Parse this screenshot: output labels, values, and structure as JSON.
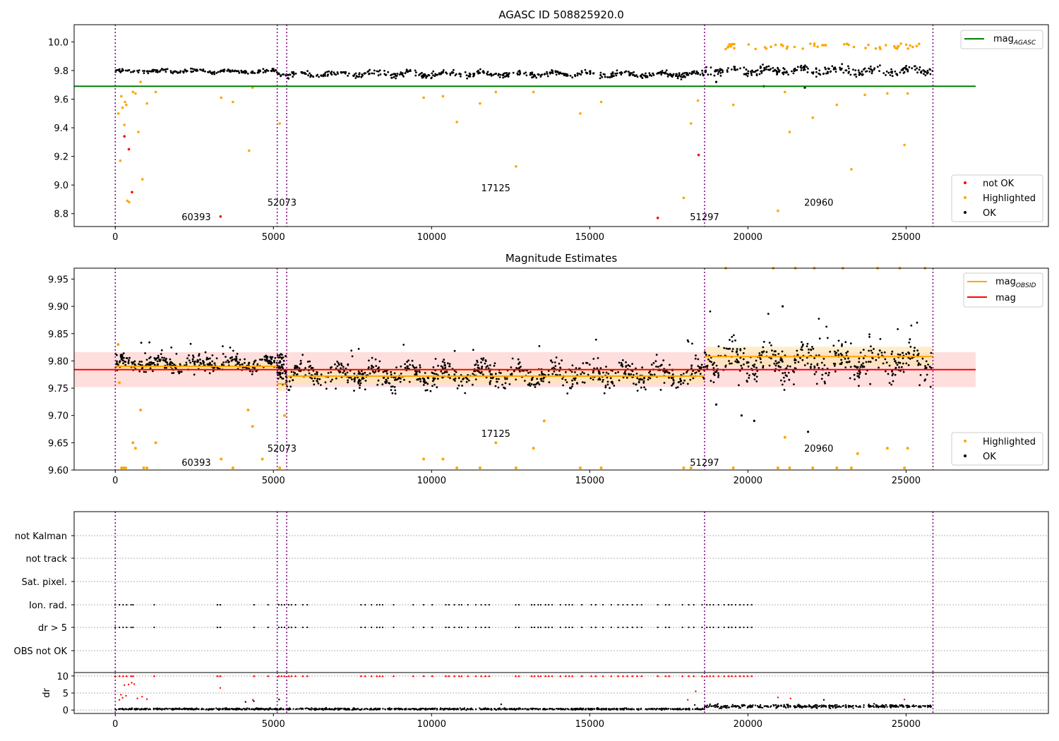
{
  "chart_data": [
    {
      "type": "scatter",
      "title": "AGASC ID 508825920.0",
      "xlim": [
        -1300,
        29500
      ],
      "ylim": [
        8.71,
        10.12
      ],
      "xticks": [
        0,
        5000,
        10000,
        15000,
        20000,
        25000
      ],
      "yticks": [
        8.8,
        9.0,
        9.2,
        9.4,
        9.6,
        9.8,
        10.0
      ],
      "ytick_labels": [
        "8.8",
        "9.0",
        "9.2",
        "9.4",
        "9.6",
        "9.8",
        "10.0"
      ],
      "grid": false,
      "hline": {
        "name": "mag_AGASC",
        "y": 9.69,
        "x_range": [
          -1300,
          27200
        ],
        "color": "#008000"
      },
      "obsid_boundaries": [
        0,
        5120,
        5420,
        18630,
        25850
      ],
      "obsid_labels": [
        {
          "text": "60393",
          "x": 2560,
          "y": 8.78
        },
        {
          "text": "52073",
          "x": 5270,
          "y": 8.88
        },
        {
          "text": "17125",
          "x": 12030,
          "y": 8.98
        },
        {
          "text": "51297",
          "x": 18630,
          "y": 8.78
        },
        {
          "text": "20960",
          "x": 22240,
          "y": 8.88
        }
      ],
      "segments": [
        {
          "x0": 0,
          "x1": 5120,
          "center": 9.795,
          "spread": 0.012
        },
        {
          "x0": 5120,
          "x1": 5420,
          "center": 9.775,
          "spread": 0.012
        },
        {
          "x0": 5420,
          "x1": 18630,
          "center": 9.775,
          "spread": 0.02
        },
        {
          "x0": 18630,
          "x1": 25850,
          "center": 9.8,
          "spread": 0.028
        }
      ],
      "series": [
        {
          "name": "not OK",
          "color": "#ff0000",
          "points": [
            [
              290,
              9.34
            ],
            [
              430,
              9.25
            ],
            [
              530,
              8.95
            ],
            [
              3330,
              8.78
            ],
            [
              17150,
              8.77
            ],
            [
              18440,
              9.21
            ]
          ]
        },
        {
          "name": "Highlighted",
          "color": "#ffa500",
          "points": [
            [
              100,
              9.5
            ],
            [
              160,
              9.17
            ],
            [
              190,
              9.62
            ],
            [
              230,
              9.54
            ],
            [
              290,
              9.42
            ],
            [
              310,
              9.58
            ],
            [
              350,
              9.56
            ],
            [
              380,
              8.89
            ],
            [
              440,
              8.88
            ],
            [
              560,
              9.65
            ],
            [
              640,
              9.64
            ],
            [
              730,
              9.37
            ],
            [
              800,
              9.72
            ],
            [
              860,
              9.04
            ],
            [
              1000,
              9.57
            ],
            [
              1280,
              9.65
            ],
            [
              3350,
              9.61
            ],
            [
              3720,
              9.58
            ],
            [
              4230,
              9.24
            ],
            [
              4340,
              9.68
            ],
            [
              5200,
              9.43
            ],
            [
              9750,
              9.61
            ],
            [
              10360,
              9.62
            ],
            [
              10800,
              9.44
            ],
            [
              11530,
              9.57
            ],
            [
              12030,
              9.65
            ],
            [
              12670,
              9.13
            ],
            [
              13220,
              9.65
            ],
            [
              14700,
              9.5
            ],
            [
              15360,
              9.58
            ],
            [
              17970,
              8.91
            ],
            [
              18200,
              9.43
            ],
            [
              18420,
              9.59
            ],
            [
              19540,
              9.56
            ],
            [
              20950,
              8.82
            ],
            [
              21170,
              9.65
            ],
            [
              21320,
              9.37
            ],
            [
              22050,
              9.47
            ],
            [
              22810,
              9.56
            ],
            [
              23270,
              9.11
            ],
            [
              23700,
              9.63
            ],
            [
              24410,
              9.64
            ],
            [
              24950,
              9.28
            ],
            [
              25050,
              9.64
            ]
          ]
        },
        {
          "name": "OK",
          "color": "#000000",
          "points": [
            [
              19000,
              9.72
            ],
            [
              20500,
              9.69
            ],
            [
              21800,
              9.68
            ]
          ]
        }
      ],
      "legends": [
        {
          "position": "upper right",
          "entries": [
            {
              "label": "mag_AGASC",
              "kind": "line",
              "color": "#008000"
            }
          ]
        },
        {
          "position": "lower right",
          "entries": [
            {
              "label": "not OK",
              "kind": "dot",
              "color": "#ff0000"
            },
            {
              "label": "Highlighted",
              "kind": "dot",
              "color": "#ffa500"
            },
            {
              "label": "OK",
              "kind": "dot",
              "color": "#000000"
            }
          ]
        }
      ]
    },
    {
      "type": "scatter",
      "title": "Magnitude Estimates",
      "xlim": [
        -1300,
        29500
      ],
      "ylim": [
        9.6,
        9.97
      ],
      "xticks": [
        0,
        5000,
        10000,
        15000,
        20000,
        25000
      ],
      "yticks": [
        9.6,
        9.65,
        9.7,
        9.75,
        9.8,
        9.85,
        9.9,
        9.95
      ],
      "ytick_labels": [
        "9.60",
        "9.65",
        "9.70",
        "9.75",
        "9.80",
        "9.85",
        "9.90",
        "9.95"
      ],
      "grid": false,
      "mag": {
        "name": "mag",
        "y": 9.784,
        "band": [
          9.752,
          9.816
        ],
        "x_range": [
          -1300,
          27200
        ],
        "color": "#ff0000",
        "band_color": "#ffd6d6"
      },
      "obsid_boundaries": [
        0,
        5120,
        5420,
        18630,
        25850
      ],
      "obsid_labels": [
        {
          "text": "60393",
          "x": 2560,
          "y": 9.614
        },
        {
          "text": "52073",
          "x": 5270,
          "y": 9.64
        },
        {
          "text": "17125",
          "x": 12030,
          "y": 9.667
        },
        {
          "text": "51297",
          "x": 18630,
          "y": 9.614
        },
        {
          "text": "20960",
          "x": 22240,
          "y": 9.64
        }
      ],
      "mag_obsid": [
        {
          "x0": 0,
          "x1": 5120,
          "y": 9.79,
          "band": [
            9.78,
            9.8
          ]
        },
        {
          "x0": 5120,
          "x1": 5420,
          "y": 9.758,
          "band": [
            9.745,
            9.772
          ]
        },
        {
          "x0": 5420,
          "x1": 18630,
          "y": 9.772,
          "band": [
            9.758,
            9.786
          ]
        },
        {
          "x0": 18630,
          "x1": 25850,
          "y": 9.808,
          "band": [
            9.79,
            9.826
          ]
        }
      ],
      "segments": [
        {
          "x0": 0,
          "x1": 5120,
          "center": 9.795,
          "spread": 0.012
        },
        {
          "x0": 5120,
          "x1": 5420,
          "center": 9.775,
          "spread": 0.012
        },
        {
          "x0": 5420,
          "x1": 18630,
          "center": 9.775,
          "spread": 0.02
        },
        {
          "x0": 18630,
          "x1": 25850,
          "center": 9.8,
          "spread": 0.028
        }
      ],
      "series": [
        {
          "name": "Highlighted",
          "color": "#ffa500",
          "points": [
            [
              90,
              9.83
            ],
            [
              130,
              9.76
            ],
            [
              200,
              9.6
            ],
            [
              260,
              9.6
            ],
            [
              330,
              9.6
            ],
            [
              560,
              9.65
            ],
            [
              640,
              9.64
            ],
            [
              800,
              9.71
            ],
            [
              900,
              9.6
            ],
            [
              1000,
              9.6
            ],
            [
              1280,
              9.65
            ],
            [
              3350,
              9.62
            ],
            [
              3720,
              9.6
            ],
            [
              4200,
              9.71
            ],
            [
              4340,
              9.68
            ],
            [
              4650,
              9.62
            ],
            [
              5200,
              9.6
            ],
            [
              5350,
              9.7
            ],
            [
              9750,
              9.62
            ],
            [
              10360,
              9.62
            ],
            [
              10800,
              9.6
            ],
            [
              11530,
              9.6
            ],
            [
              12030,
              9.65
            ],
            [
              12670,
              9.6
            ],
            [
              13220,
              9.64
            ],
            [
              13560,
              9.69
            ],
            [
              14700,
              9.6
            ],
            [
              15360,
              9.6
            ],
            [
              17970,
              9.6
            ],
            [
              18200,
              9.6
            ],
            [
              19540,
              9.6
            ],
            [
              20950,
              9.6
            ],
            [
              21170,
              9.66
            ],
            [
              21320,
              9.6
            ],
            [
              22050,
              9.6
            ],
            [
              22810,
              9.6
            ],
            [
              23270,
              9.6
            ],
            [
              23470,
              9.63
            ],
            [
              24410,
              9.64
            ],
            [
              24950,
              9.6
            ],
            [
              25050,
              9.64
            ],
            [
              19300,
              9.97
            ],
            [
              20800,
              9.97
            ],
            [
              21500,
              9.97
            ],
            [
              22100,
              9.97
            ],
            [
              23000,
              9.97
            ],
            [
              24100,
              9.97
            ],
            [
              24800,
              9.97
            ],
            [
              25600,
              9.97
            ]
          ]
        },
        {
          "name": "OK",
          "color": "#000000",
          "points": [
            [
              19000,
              9.72
            ],
            [
              19800,
              9.7
            ],
            [
              20200,
              9.69
            ],
            [
              21900,
              9.67
            ],
            [
              21100,
              9.9
            ]
          ]
        }
      ],
      "legends": [
        {
          "position": "upper right",
          "entries": [
            {
              "label": "mag_OBSID",
              "kind": "line",
              "color": "#ffa500"
            },
            {
              "label": "mag",
              "kind": "line",
              "color": "#ff0000"
            }
          ]
        },
        {
          "position": "lower right",
          "entries": [
            {
              "label": "Highlighted",
              "kind": "dot",
              "color": "#ffa500"
            },
            {
              "label": "OK",
              "kind": "dot",
              "color": "#000000"
            }
          ]
        }
      ]
    },
    {
      "type": "scatter",
      "title": "",
      "xlim": [
        -1300,
        29500
      ],
      "categories": [
        "not Kalman",
        "not track",
        "Sat. pixel.",
        "Ion. rad.",
        "dr > 5",
        "OBS not OK"
      ],
      "grid": true,
      "flag_x": [
        0,
        130,
        250,
        360,
        500,
        560,
        1230,
        3230,
        3320,
        4390,
        4830,
        5170,
        5260,
        5350,
        5480,
        5570,
        5700,
        5930,
        6070,
        7770,
        7900,
        8100,
        8270,
        8360,
        8450,
        8800,
        9420,
        9750,
        10020,
        10450,
        10550,
        10720,
        10870,
        10950,
        11150,
        11400,
        11570,
        11700,
        11820,
        12660,
        12760,
        13160,
        13250,
        13370,
        13450,
        13600,
        13700,
        13810,
        14070,
        14240,
        14350,
        14450,
        14750,
        15050,
        15190,
        15420,
        15680,
        15900,
        16050,
        16190,
        16350,
        16500,
        16640,
        17150,
        17400,
        17510,
        17930,
        18130,
        18290,
        18550,
        18700,
        18800,
        18910,
        19070,
        19250,
        19390,
        19490,
        19610,
        19750,
        19870,
        19990,
        20120
      ],
      "series": []
    },
    {
      "type": "scatter",
      "title": "",
      "ylabel": "dr",
      "xlim": [
        -1300,
        29500
      ],
      "ylim": [
        -1,
        11
      ],
      "xticks": [
        0,
        5000,
        10000,
        15000,
        20000,
        25000
      ],
      "yticks": [
        0,
        5,
        10
      ],
      "ytick_labels": [
        "0",
        "5",
        "10"
      ],
      "grid": true,
      "baseline_segments": [
        {
          "x0": 0,
          "x1": 18630,
          "center": 0.3,
          "spread": 0.4
        },
        {
          "x0": 18630,
          "x1": 25850,
          "center": 1.1,
          "spread": 0.8
        }
      ],
      "series": [
        {
          "name": "dr > 5",
          "color": "#ff0000",
          "points": [
            [
              130,
              3.0
            ],
            [
              180,
              4.5
            ],
            [
              230,
              3.6
            ],
            [
              290,
              7.3
            ],
            [
              340,
              4.2
            ],
            [
              420,
              7.5
            ],
            [
              520,
              8.0
            ],
            [
              600,
              7.6
            ],
            [
              700,
              3.4
            ],
            [
              850,
              3.9
            ],
            [
              1000,
              3.2
            ],
            [
              3320,
              6.5
            ],
            [
              4350,
              3.0
            ],
            [
              18100,
              3.0
            ],
            [
              18350,
              5.5
            ],
            [
              20950,
              3.7
            ],
            [
              21350,
              3.4
            ],
            [
              24950,
              3.1
            ]
          ]
        },
        {
          "name": "OK",
          "color": "#000000",
          "points": [
            [
              4120,
              2.4
            ],
            [
              4380,
              2.6
            ],
            [
              5180,
              3.1
            ],
            [
              12200,
              1.7
            ],
            [
              18320,
              1.5
            ],
            [
              22400,
              3.0
            ]
          ]
        }
      ]
    }
  ]
}
